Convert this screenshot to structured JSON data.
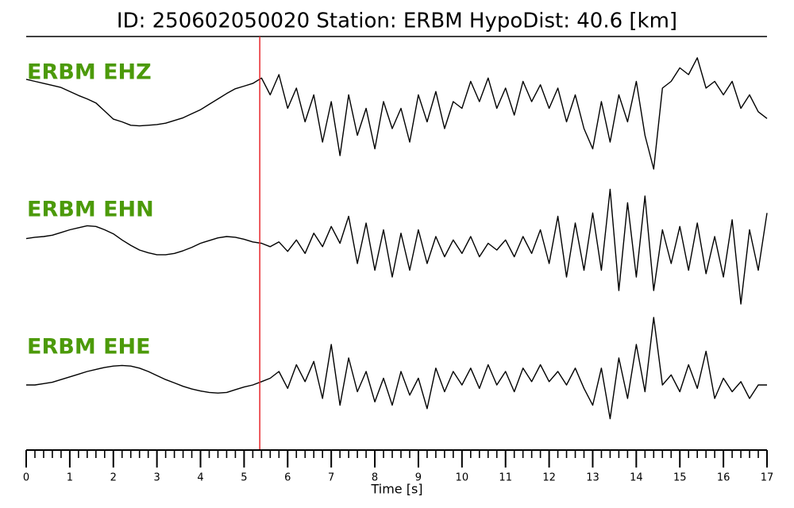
{
  "chart_data": {
    "type": "line",
    "title": "ID: 250602050020   Station: ERBM   HypoDist:    40.6 [km]",
    "xlabel": "Time [s]",
    "xlim": [
      0,
      17
    ],
    "xticks": [
      0,
      1,
      2,
      3,
      4,
      5,
      6,
      7,
      8,
      9,
      10,
      11,
      12,
      13,
      14,
      15,
      16,
      17
    ],
    "ylim": [
      -1,
      1
    ],
    "marker_x": 5.36,
    "marker_color": "#e8262a",
    "label_color": "#4c9a0a",
    "x": [
      0,
      0.2,
      0.4,
      0.6,
      0.8,
      1,
      1.2,
      1.4,
      1.6,
      1.8,
      2,
      2.2,
      2.4,
      2.6,
      2.8,
      3,
      3.2,
      3.4,
      3.6,
      3.8,
      4,
      4.2,
      4.4,
      4.6,
      4.8,
      5,
      5.2,
      5.4,
      5.6,
      5.8,
      6,
      6.2,
      6.4,
      6.6,
      6.8,
      7,
      7.2,
      7.4,
      7.6,
      7.8,
      8,
      8.2,
      8.4,
      8.6,
      8.8,
      9,
      9.2,
      9.4,
      9.6,
      9.8,
      10,
      10.2,
      10.4,
      10.6,
      10.8,
      11,
      11.2,
      11.4,
      11.6,
      11.8,
      12,
      12.2,
      12.4,
      12.6,
      12.8,
      13,
      13.2,
      13.4,
      13.6,
      13.8,
      14,
      14.2,
      14.4,
      14.6,
      14.8,
      15,
      15.2,
      15.4,
      15.6,
      15.8,
      16,
      16.2,
      16.4,
      16.6,
      16.8,
      17
    ],
    "series": [
      {
        "name": "ERBM EHZ",
        "color": "#000000",
        "values": [
          0.53,
          0.5,
          0.47,
          0.44,
          0.41,
          0.35,
          0.29,
          0.24,
          0.18,
          0.06,
          -0.06,
          -0.1,
          -0.15,
          -0.16,
          -0.15,
          -0.14,
          -0.12,
          -0.08,
          -0.04,
          0.02,
          0.08,
          0.16,
          0.24,
          0.32,
          0.39,
          0.43,
          0.47,
          0.55,
          0.3,
          0.6,
          0.1,
          0.4,
          -0.1,
          0.3,
          -0.4,
          0.2,
          -0.6,
          0.3,
          -0.3,
          0.1,
          -0.5,
          0.2,
          -0.2,
          0.1,
          -0.4,
          0.3,
          -0.1,
          0.35,
          -0.2,
          0.2,
          0.1,
          0.5,
          0.2,
          0.55,
          0.1,
          0.4,
          0.0,
          0.5,
          0.2,
          0.45,
          0.1,
          0.4,
          -0.1,
          0.3,
          -0.2,
          -0.5,
          0.2,
          -0.4,
          0.3,
          -0.1,
          0.5,
          -0.3,
          -0.8,
          0.4,
          0.5,
          0.7,
          0.6,
          0.85,
          0.4,
          0.5,
          0.3,
          0.5,
          0.1,
          0.3,
          0.05,
          -0.05
        ]
      },
      {
        "name": "ERBM EHN",
        "color": "#000000",
        "values": [
          0.17,
          0.19,
          0.2,
          0.22,
          0.26,
          0.3,
          0.33,
          0.36,
          0.35,
          0.3,
          0.24,
          0.15,
          0.07,
          0.0,
          -0.04,
          -0.07,
          -0.07,
          -0.05,
          -0.01,
          0.04,
          0.1,
          0.14,
          0.18,
          0.2,
          0.19,
          0.16,
          0.12,
          0.1,
          0.05,
          0.12,
          -0.02,
          0.15,
          -0.05,
          0.25,
          0.05,
          0.35,
          0.1,
          0.5,
          -0.2,
          0.4,
          -0.3,
          0.3,
          -0.4,
          0.25,
          -0.3,
          0.3,
          -0.2,
          0.2,
          -0.1,
          0.15,
          -0.05,
          0.2,
          -0.1,
          0.1,
          0.0,
          0.15,
          -0.1,
          0.2,
          -0.05,
          0.3,
          -0.2,
          0.5,
          -0.4,
          0.4,
          -0.3,
          0.55,
          -0.3,
          0.9,
          -0.6,
          0.7,
          -0.4,
          0.8,
          -0.6,
          0.3,
          -0.2,
          0.35,
          -0.3,
          0.4,
          -0.35,
          0.2,
          -0.4,
          0.45,
          -0.8,
          0.3,
          -0.3,
          0.55
        ]
      },
      {
        "name": "ERBM EHE",
        "color": "#000000",
        "values": [
          0.0,
          0.0,
          0.02,
          0.04,
          0.08,
          0.12,
          0.16,
          0.2,
          0.23,
          0.26,
          0.28,
          0.29,
          0.28,
          0.25,
          0.2,
          0.14,
          0.08,
          0.03,
          -0.02,
          -0.06,
          -0.09,
          -0.11,
          -0.12,
          -0.11,
          -0.07,
          -0.03,
          0.0,
          0.05,
          0.1,
          0.2,
          -0.05,
          0.3,
          0.05,
          0.35,
          -0.2,
          0.6,
          -0.3,
          0.4,
          -0.1,
          0.2,
          -0.25,
          0.1,
          -0.3,
          0.2,
          -0.15,
          0.1,
          -0.35,
          0.25,
          -0.1,
          0.2,
          0.0,
          0.25,
          -0.05,
          0.3,
          0.0,
          0.2,
          -0.1,
          0.25,
          0.05,
          0.3,
          0.05,
          0.2,
          0.0,
          0.25,
          -0.05,
          -0.3,
          0.25,
          -0.5,
          0.4,
          -0.2,
          0.6,
          -0.1,
          1.0,
          0.0,
          0.15,
          -0.1,
          0.3,
          -0.05,
          0.5,
          -0.2,
          0.1,
          -0.1,
          0.05,
          -0.2,
          0.0,
          0.0
        ]
      }
    ]
  }
}
